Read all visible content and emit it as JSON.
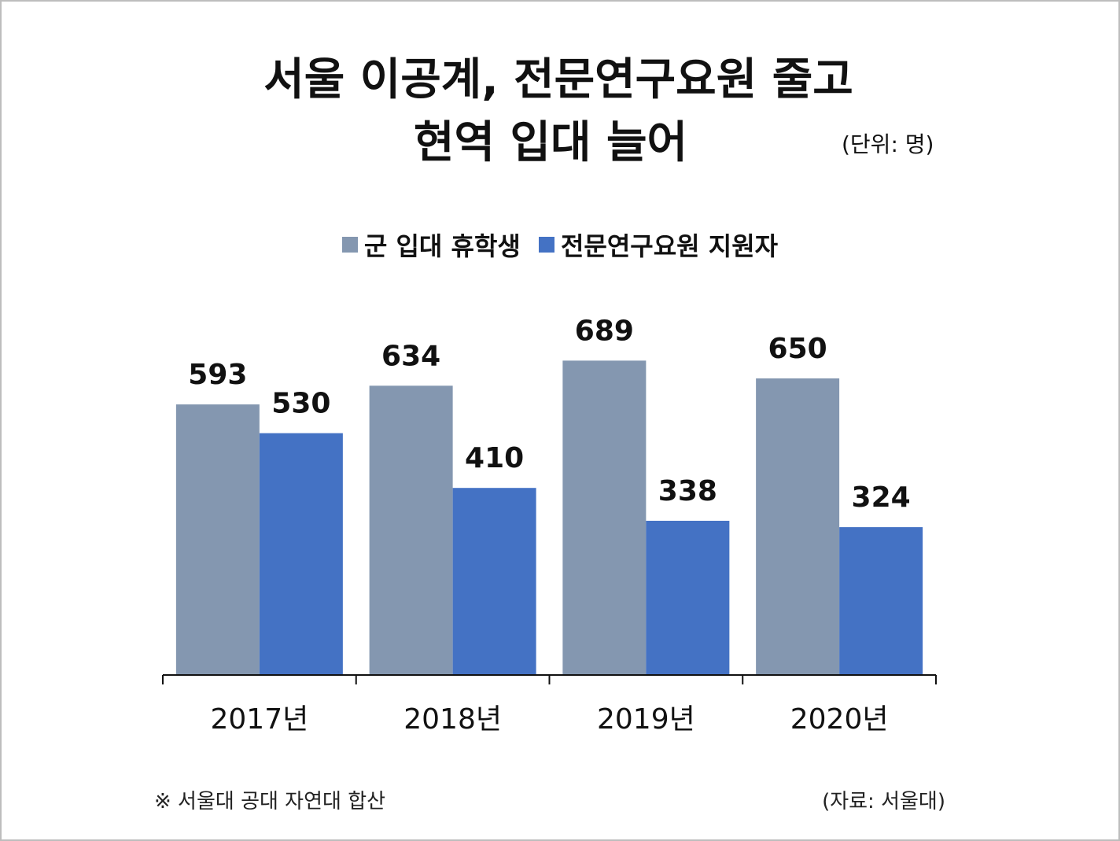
{
  "title_line1": "서울 이공계, 전문연구요원 줄고",
  "title_line2": "현역 입대 늘어",
  "unit": "(단위: 명)",
  "footnote": "※ 서울대 공대 자연대 합산",
  "source": "(자료: 서울대)",
  "colors": {
    "series1": "#8497b0",
    "series2": "#4472c4"
  },
  "chart_data": {
    "type": "bar",
    "categories": [
      "2017년",
      "2018년",
      "2019년",
      "2020년"
    ],
    "series": [
      {
        "name": "군 입대 휴학생",
        "values": [
          593,
          634,
          689,
          650
        ]
      },
      {
        "name": "전문연구요원 지원자",
        "values": [
          530,
          410,
          338,
          324
        ]
      }
    ],
    "title": "서울 이공계, 전문연구요원 줄고 현역 입대 늘어",
    "legend_position": "top",
    "grid": false,
    "ylim": [
      0,
      700
    ]
  }
}
